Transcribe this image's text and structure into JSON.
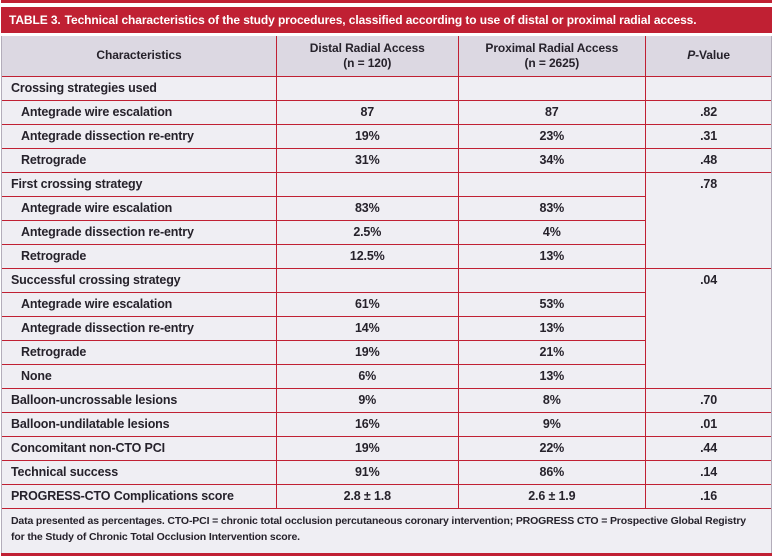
{
  "title": {
    "prefix": "TABLE 3.",
    "text": "Technical characteristics of the study procedures, classified according to use of distal or proximal radial access."
  },
  "header": {
    "characteristics": "Characteristics",
    "distal_line1": "Distal Radial Access",
    "distal_line2": "(n = 120)",
    "proximal_line1": "Proximal Radial Access",
    "proximal_line2": "(n = 2625)",
    "p_italic": "P",
    "p_rest": "-Value"
  },
  "rows": [
    {
      "label": "Crossing strategies used",
      "indent": false,
      "distal": "",
      "proximal": "",
      "p": "",
      "p_rowspan": 1
    },
    {
      "label": "Antegrade wire escalation",
      "indent": true,
      "distal": "87",
      "proximal": "87",
      "p": ".82",
      "p_rowspan": 1
    },
    {
      "label": "Antegrade dissection re-entry",
      "indent": true,
      "distal": "19%",
      "proximal": "23%",
      "p": ".31",
      "p_rowspan": 1
    },
    {
      "label": "Retrograde",
      "indent": true,
      "distal": "31%",
      "proximal": "34%",
      "p": ".48",
      "p_rowspan": 1
    },
    {
      "label": "First crossing strategy",
      "indent": false,
      "distal": "",
      "proximal": "",
      "p": ".78",
      "p_rowspan": 4
    },
    {
      "label": "Antegrade wire escalation",
      "indent": true,
      "distal": "83%",
      "proximal": "83%"
    },
    {
      "label": "Antegrade dissection re-entry",
      "indent": true,
      "distal": "2.5%",
      "proximal": "4%"
    },
    {
      "label": "Retrograde",
      "indent": true,
      "distal": "12.5%",
      "proximal": "13%"
    },
    {
      "label": "Successful crossing strategy",
      "indent": false,
      "distal": "",
      "proximal": "",
      "p": ".04",
      "p_rowspan": 5
    },
    {
      "label": "Antegrade wire escalation",
      "indent": true,
      "distal": "61%",
      "proximal": "53%"
    },
    {
      "label": "Antegrade dissection re-entry",
      "indent": true,
      "distal": "14%",
      "proximal": "13%"
    },
    {
      "label": "Retrograde",
      "indent": true,
      "distal": "19%",
      "proximal": "21%"
    },
    {
      "label": "None",
      "indent": true,
      "distal": "6%",
      "proximal": "13%"
    },
    {
      "label": "Balloon-uncrossable lesions",
      "indent": false,
      "distal": "9%",
      "proximal": "8%",
      "p": ".70",
      "p_rowspan": 1
    },
    {
      "label": "Balloon-undilatable lesions",
      "indent": false,
      "distal": "16%",
      "proximal": "9%",
      "p": ".01",
      "p_rowspan": 1
    },
    {
      "label": "Concomitant non-CTO PCI",
      "indent": false,
      "distal": "19%",
      "proximal": "22%",
      "p": ".44",
      "p_rowspan": 1
    },
    {
      "label": "Technical success",
      "indent": false,
      "distal": "91%",
      "proximal": "86%",
      "p": ".14",
      "p_rowspan": 1
    },
    {
      "label": "PROGRESS-CTO Complications score",
      "indent": false,
      "distal": "2.8 ± 1.8",
      "proximal": "2.6 ± 1.9",
      "p": ".16",
      "p_rowspan": 1
    }
  ],
  "footnote": "Data presented as percentages. CTO-PCI = chronic total occlusion percutaneous coronary intervention; PROGRESS CTO = Prospective Global Registry for the Study of Chronic Total Occlusion Intervention score.",
  "colors": {
    "accent_red": "#c02033",
    "header_bg": "#dcd8e2",
    "row_bg": "#efeef3",
    "text_dark": "#26222b"
  }
}
